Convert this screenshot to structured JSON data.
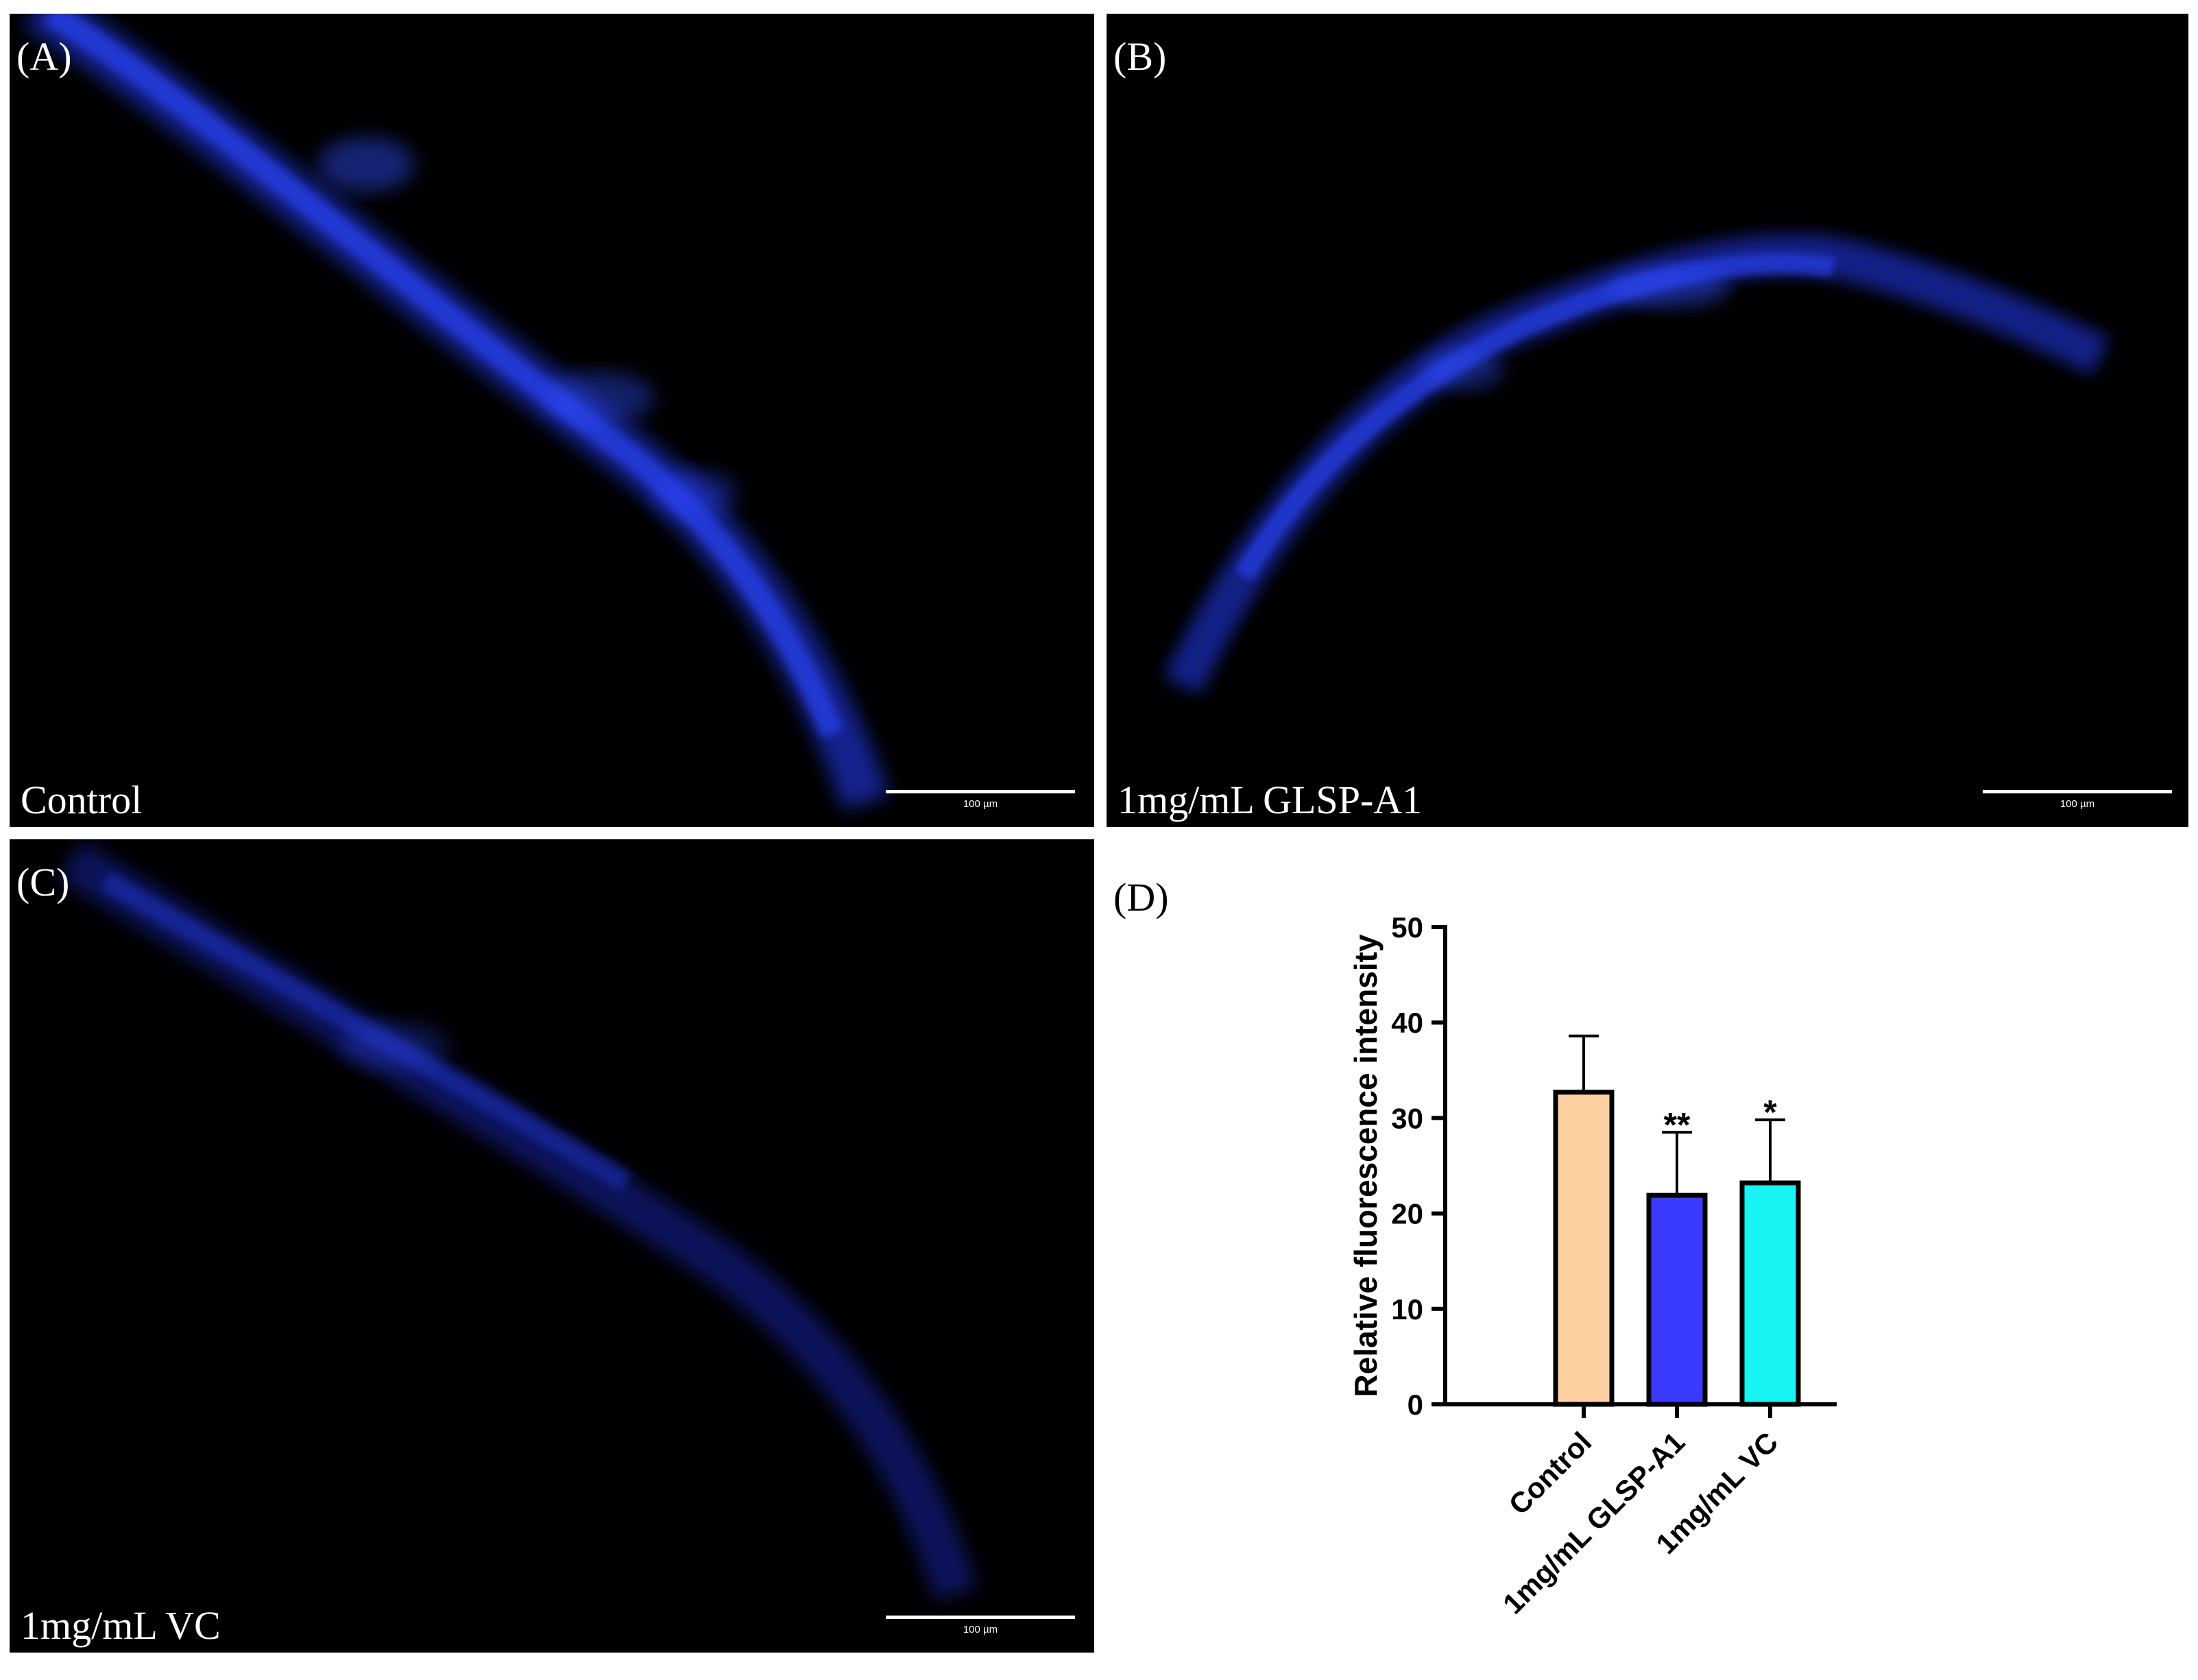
{
  "panels": {
    "a": {
      "letter": "(A)",
      "caption": "Control",
      "scale_text": "100 µm"
    },
    "b": {
      "letter": "(B)",
      "caption": "1mg/mL GLSP-A1",
      "scale_text": "100 µm"
    },
    "c": {
      "letter": "(C)",
      "caption": "1mg/mL VC",
      "scale_text": "100 µm"
    },
    "d": {
      "letter": "(D)"
    }
  },
  "chart_data": {
    "type": "bar",
    "categories": [
      "Control",
      "1mg/mL GLSP-A1",
      "1mg/mL VC"
    ],
    "values": [
      32.7,
      21.9,
      23.2
    ],
    "errors": [
      5.9,
      6.6,
      6.6
    ],
    "significance": [
      "",
      "**",
      "*"
    ],
    "colors": [
      "#fcd0a0",
      "#3a3afc",
      "#18f4f4"
    ],
    "ylabel": "Relative fluorescence intensity",
    "xlabel": "",
    "ylim": [
      0,
      50
    ],
    "yticks": [
      0,
      10,
      20,
      30,
      40,
      50
    ],
    "grid": false
  }
}
